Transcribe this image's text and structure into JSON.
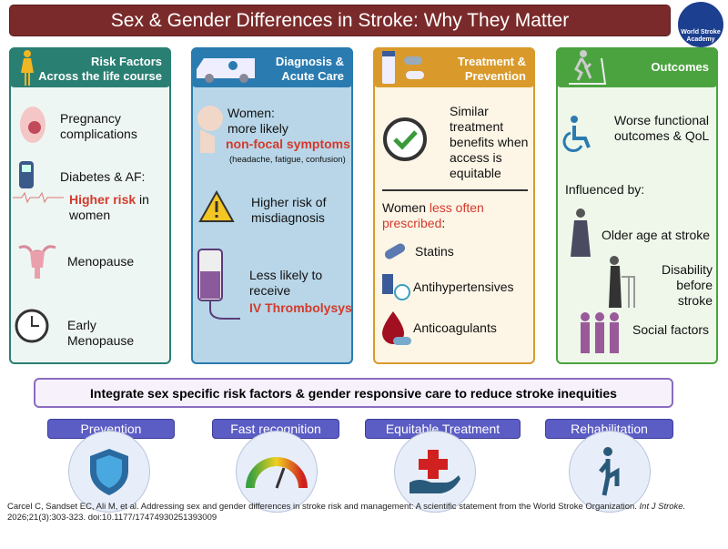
{
  "title": "Sex & Gender Differences in Stroke: Why They Matter",
  "logo": {
    "text": "World Stroke Academy",
    "line1": "World Stroke",
    "line2": "Academy"
  },
  "columns": [
    {
      "header": [
        "Risk Factors",
        "Across the life course"
      ],
      "color": "#2a7f73",
      "items": [
        "Pregnancy complications",
        "Diabetes & AF:",
        "Higher risk",
        "in women",
        "Menopause",
        "Early Menopause"
      ]
    },
    {
      "header": [
        "Diagnosis &",
        "Acute Care"
      ],
      "color": "#2a7bb0",
      "items": [
        "Women:",
        "more likely",
        "non-focal symptoms",
        "(headache, fatigue, confusion)",
        "Higher risk of misdiagnosis",
        "Less likely to receive",
        "IV Thrombolysys"
      ]
    },
    {
      "header": [
        "Treatment &",
        "Prevention"
      ],
      "color": "#d99a2b",
      "items": [
        "Similar treatment benefits when access is equitable",
        "Women",
        "less often prescribed",
        ":",
        "Statins",
        "Antihypertensives",
        "Anticoagulants"
      ]
    },
    {
      "header": [
        "Outcomes"
      ],
      "color": "#4aa33f",
      "items": [
        "Worse functional outcomes & QoL",
        "Influenced by:",
        "Older age at stroke",
        "Disability before stroke",
        "Social factors"
      ]
    }
  ],
  "banner": "Integrate sex specific risk factors & gender responsive care to reduce stroke inequities",
  "pillars": [
    {
      "label": "Prevention",
      "icon": "shield-icon"
    },
    {
      "label": "Fast recognition",
      "icon": "gauge-icon"
    },
    {
      "label": "Equitable Treatment",
      "icon": "hand-cross-icon"
    },
    {
      "label": "Rehabilitation",
      "icon": "person-exercise-icon"
    }
  ],
  "citation": {
    "text": "Carcel C, Sandset EC, Ali M, et al. Addressing sex and gender differences in stroke risk and management: A scientific statement from the World Stroke Organization.",
    "journal": "Int J Stroke.",
    "ref": "2026;21(3):303-323. doi:10.1177/17474930251393009"
  }
}
